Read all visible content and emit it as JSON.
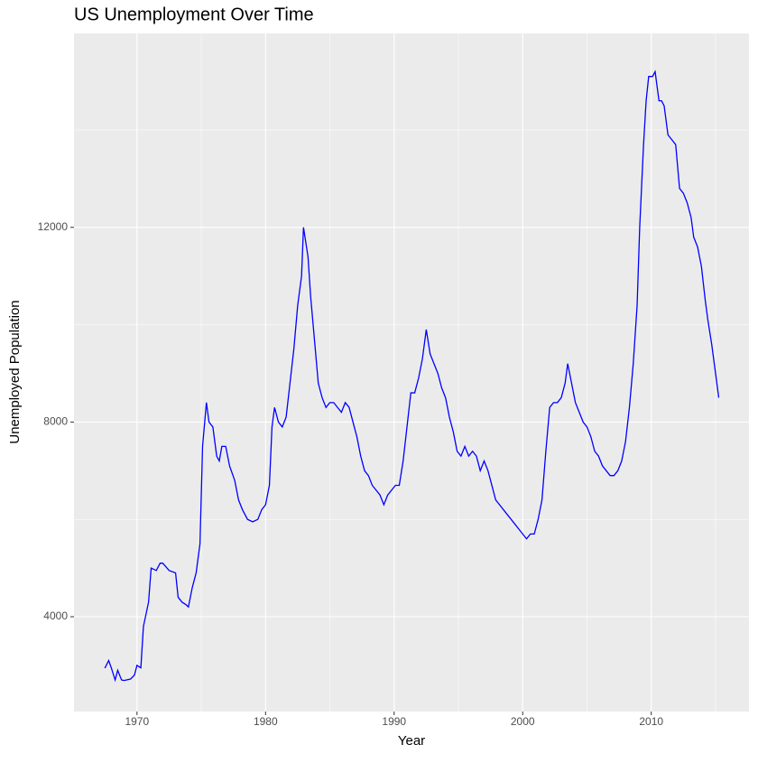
{
  "chart_data": {
    "type": "line",
    "title": "US Unemployment Over Time",
    "x_label": "Year",
    "y_label": "Unemployed Population",
    "color": "#0000ff",
    "grid": true,
    "x": [
      1967.5,
      1967.8,
      1968.0,
      1968.3,
      1968.5,
      1968.8,
      1969.0,
      1969.5,
      1969.8,
      1970.0,
      1970.3,
      1970.5,
      1970.9,
      1971.1,
      1971.5,
      1971.8,
      1972.0,
      1972.5,
      1973.0,
      1973.2,
      1973.5,
      1973.8,
      1974.0,
      1974.3,
      1974.6,
      1974.9,
      1975.1,
      1975.4,
      1975.6,
      1975.9,
      1976.2,
      1976.4,
      1976.6,
      1976.9,
      1977.2,
      1977.6,
      1977.9,
      1978.2,
      1978.6,
      1979.0,
      1979.4,
      1979.7,
      1980.0,
      1980.3,
      1980.5,
      1980.7,
      1981.0,
      1981.3,
      1981.6,
      1981.9,
      1982.2,
      1982.5,
      1982.8,
      1982.95,
      1983.3,
      1983.5,
      1983.8,
      1984.1,
      1984.4,
      1984.7,
      1985.0,
      1985.3,
      1985.6,
      1985.9,
      1986.2,
      1986.5,
      1986.8,
      1987.1,
      1987.4,
      1987.7,
      1988.0,
      1988.3,
      1988.6,
      1988.9,
      1989.2,
      1989.5,
      1989.8,
      1990.1,
      1990.4,
      1990.7,
      1991.0,
      1991.3,
      1991.6,
      1991.9,
      1992.2,
      1992.5,
      1992.8,
      1993.1,
      1993.4,
      1993.7,
      1994.0,
      1994.3,
      1994.6,
      1994.9,
      1995.2,
      1995.5,
      1995.8,
      1996.1,
      1996.4,
      1996.7,
      1997.0,
      1997.3,
      1997.6,
      1997.9,
      1998.2,
      1998.5,
      1998.8,
      1999.1,
      1999.4,
      1999.7,
      2000.0,
      2000.3,
      2000.6,
      2000.9,
      2001.2,
      2001.5,
      2001.8,
      2002.1,
      2002.4,
      2002.7,
      2003.0,
      2003.3,
      2003.5,
      2003.8,
      2004.1,
      2004.4,
      2004.7,
      2005.0,
      2005.3,
      2005.6,
      2005.9,
      2006.2,
      2006.5,
      2006.8,
      2007.1,
      2007.4,
      2007.7,
      2008.0,
      2008.3,
      2008.6,
      2008.9,
      2009.1,
      2009.4,
      2009.6,
      2009.8,
      2010.1,
      2010.3,
      2010.6,
      2010.8,
      2011.0,
      2011.3,
      2011.6,
      2011.9,
      2012.2,
      2012.5,
      2012.8,
      2013.1,
      2013.3,
      2013.6,
      2013.9,
      2014.2,
      2014.4,
      2014.7,
      2015.0,
      2015.25
    ],
    "values": [
      2944,
      3100,
      2950,
      2700,
      2900,
      2700,
      2690,
      2720,
      2800,
      3000,
      2950,
      3800,
      4300,
      5000,
      4950,
      5100,
      5100,
      4950,
      4900,
      4400,
      4300,
      4250,
      4200,
      4600,
      4900,
      5500,
      7500,
      8400,
      8000,
      7900,
      7300,
      7200,
      7500,
      7500,
      7100,
      6800,
      6400,
      6200,
      6000,
      5950,
      6000,
      6200,
      6300,
      6700,
      7900,
      8300,
      8000,
      7900,
      8100,
      8800,
      9500,
      10400,
      11000,
      12000,
      11400,
      10600,
      9700,
      8800,
      8500,
      8300,
      8400,
      8400,
      8300,
      8200,
      8400,
      8300,
      8000,
      7700,
      7300,
      7000,
      6900,
      6700,
      6600,
      6500,
      6300,
      6500,
      6600,
      6700,
      6700,
      7200,
      7900,
      8600,
      8600,
      8900,
      9300,
      9900,
      9400,
      9200,
      9000,
      8700,
      8500,
      8100,
      7800,
      7400,
      7300,
      7500,
      7300,
      7400,
      7300,
      7000,
      7200,
      7000,
      6700,
      6400,
      6300,
      6200,
      6100,
      6000,
      5900,
      5800,
      5700,
      5600,
      5700,
      5700,
      6000,
      6400,
      7400,
      8300,
      8400,
      8400,
      8500,
      8800,
      9200,
      8800,
      8400,
      8200,
      8000,
      7900,
      7700,
      7400,
      7300,
      7100,
      7000,
      6900,
      6900,
      7000,
      7200,
      7600,
      8300,
      9200,
      10400,
      12000,
      13700,
      14600,
      15100,
      15100,
      15200,
      14600,
      14600,
      14500,
      13900,
      13800,
      13700,
      12800,
      12700,
      12500,
      12200,
      11800,
      11600,
      11200,
      10500,
      10100,
      9600,
      9000,
      8500
    ],
    "xlim": [
      1965.1,
      2017.6
    ],
    "xticks": [
      1970,
      1980,
      1990,
      2000,
      2010
    ],
    "ylim": [
      2052,
      15985
    ],
    "yticks": [
      4000,
      8000,
      12000
    ]
  }
}
